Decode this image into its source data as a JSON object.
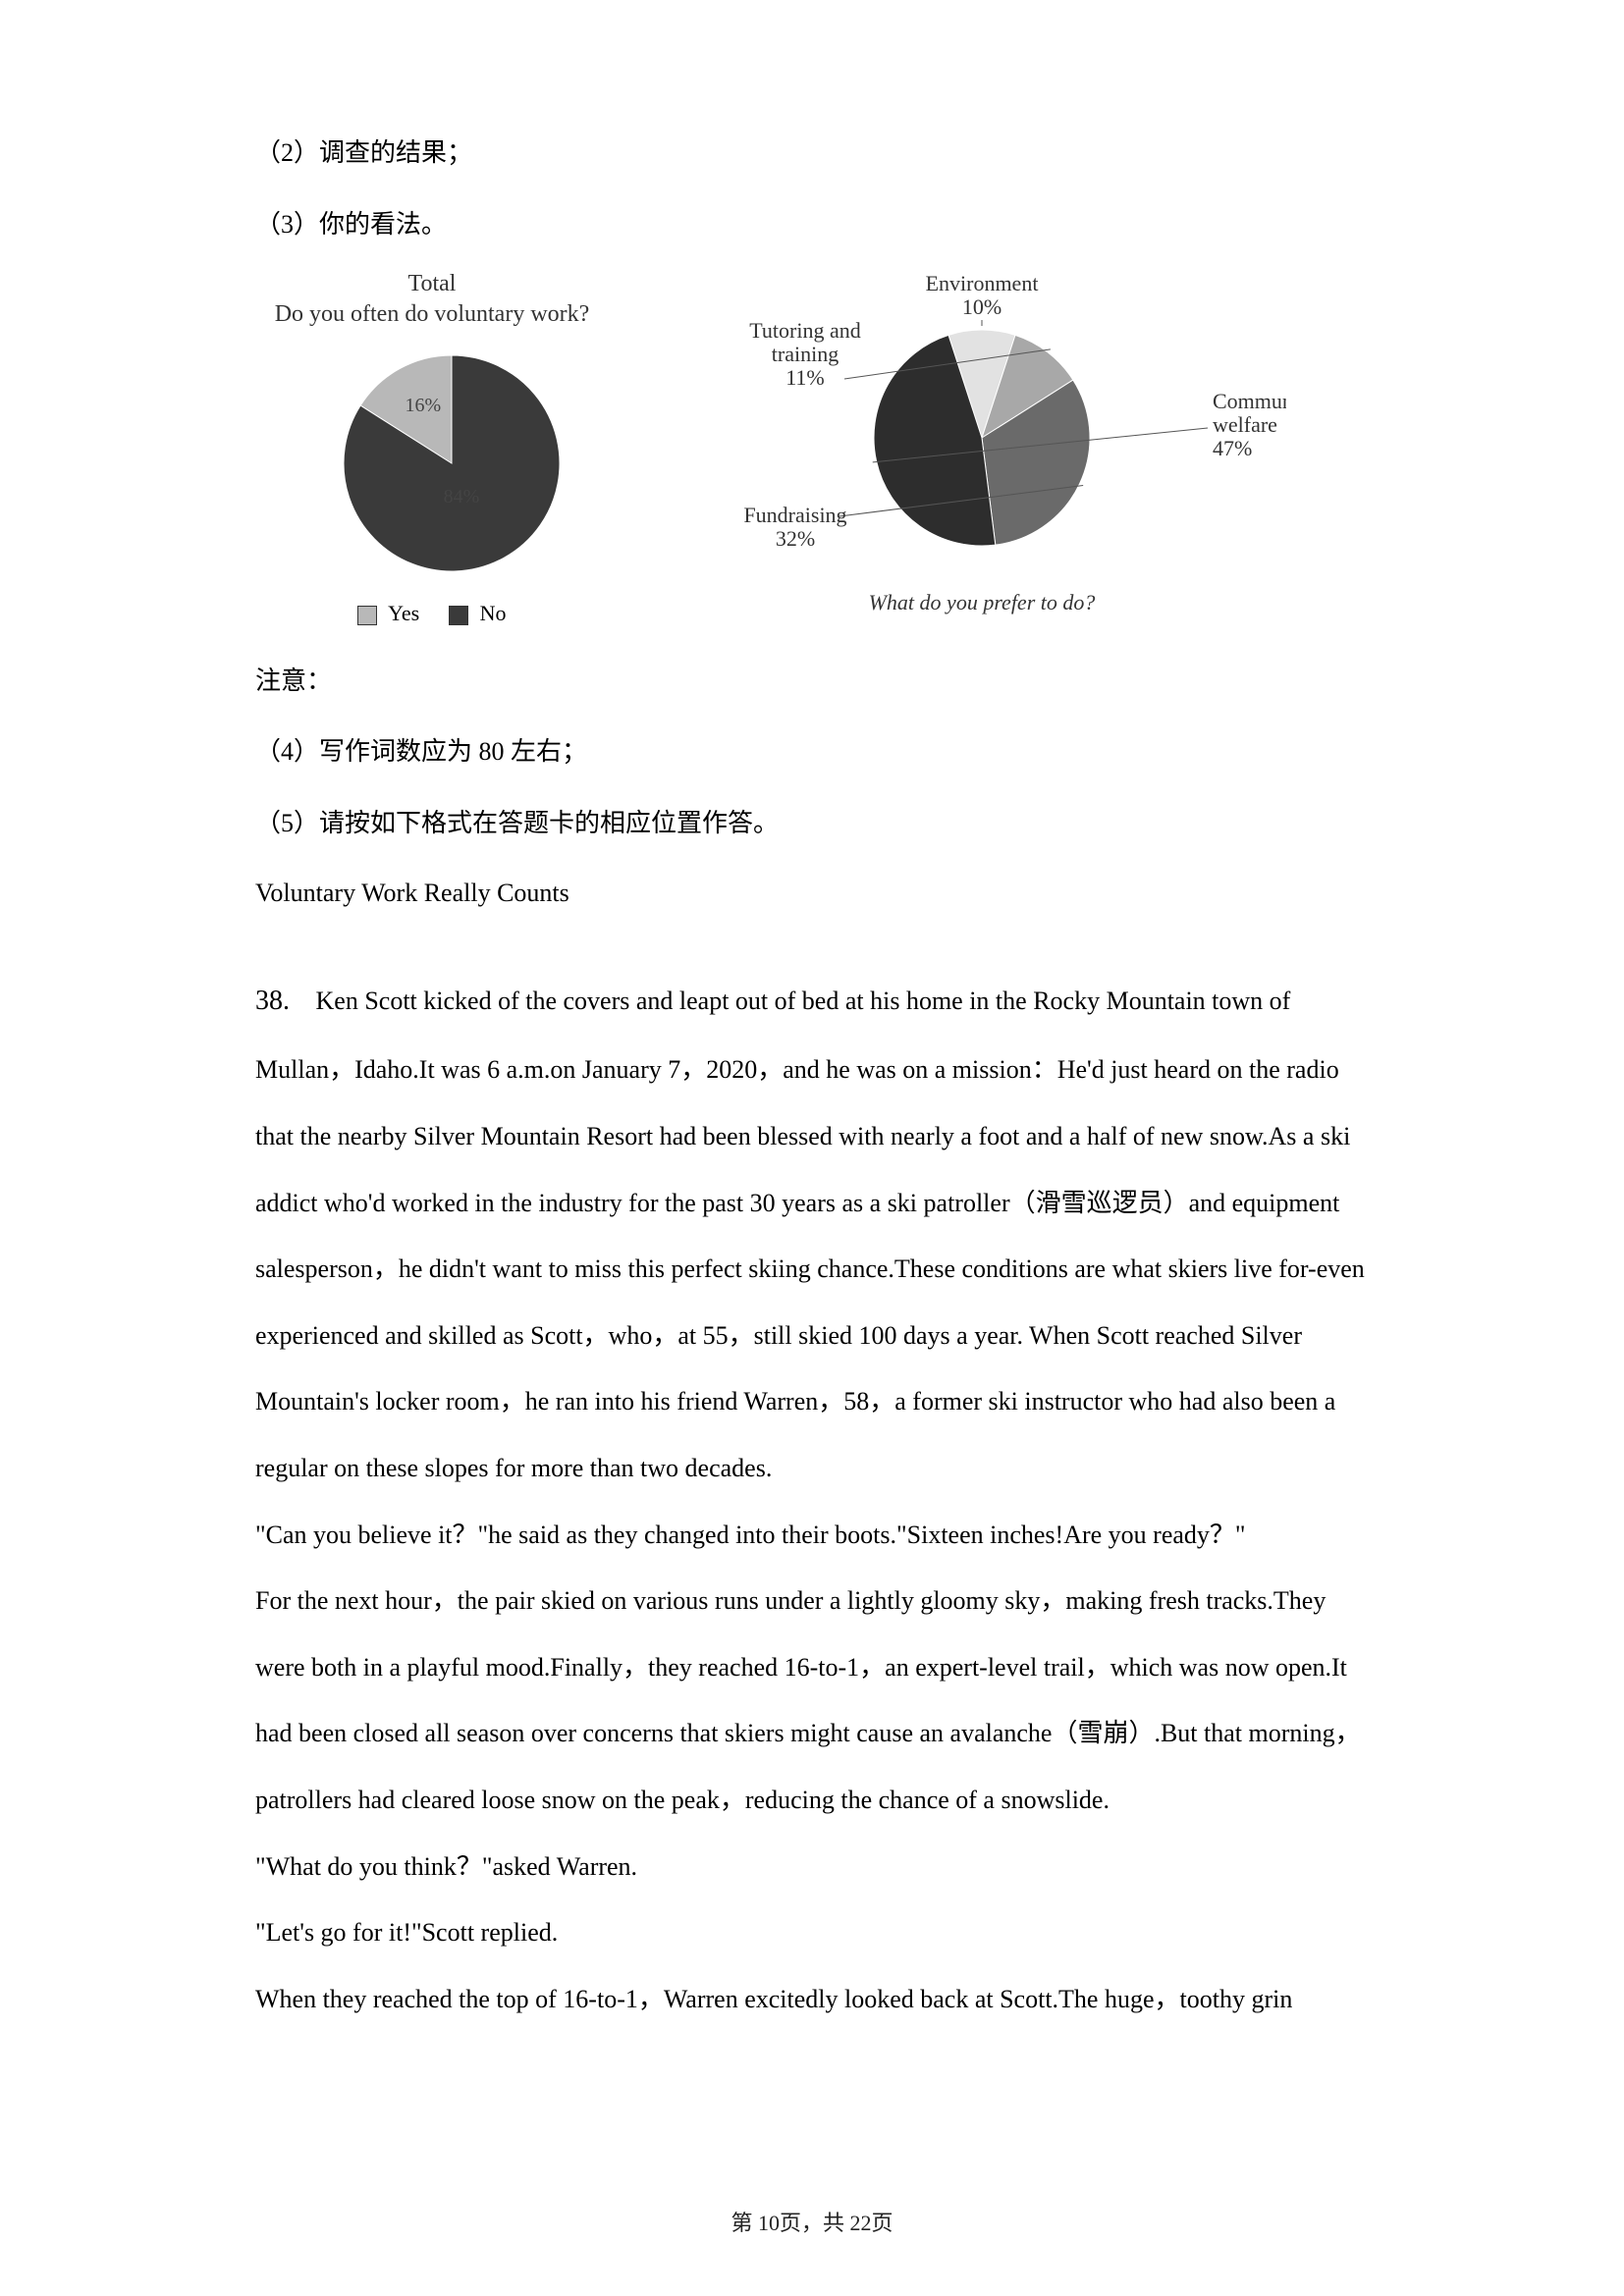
{
  "intro": {
    "item2": "（2）调查的结果；",
    "item3": "（3）你的看法。"
  },
  "chart1": {
    "type": "pie",
    "title": "Total",
    "subtitle": "Do you often do voluntary work?",
    "slices": [
      {
        "label": "Yes",
        "value_label": "16%",
        "value": 16,
        "color": "#b8b8b8"
      },
      {
        "label": "No",
        "value_label": "84%",
        "value": 84,
        "color": "#3a3a3a",
        "center_text": "84%"
      }
    ],
    "legend": [
      {
        "swatch": "#b8b8b8",
        "label": "Yes"
      },
      {
        "swatch": "#3a3a3a",
        "label": "No"
      }
    ],
    "radius": 110,
    "background": "#ffffff"
  },
  "chart2": {
    "type": "pie",
    "title": "Environment",
    "title_value": "10%",
    "labels": {
      "tutoring": {
        "text": "Tutoring and",
        "text2": "training",
        "value": "11%"
      },
      "fundraising": {
        "text": "Fundraising",
        "value": "32%"
      },
      "community": {
        "text": "Community",
        "text2": "welfare",
        "value": "47%"
      }
    },
    "slices": [
      {
        "id": "environment",
        "value": 10,
        "color": "#e2e2e2"
      },
      {
        "id": "tutoring",
        "value": 11,
        "color": "#a8a8a8"
      },
      {
        "id": "fundraising",
        "value": 32,
        "color": "#6a6a6a"
      },
      {
        "id": "community",
        "value": 47,
        "color": "#2d2d2d"
      }
    ],
    "caption": "What do you prefer to do?",
    "radius": 110,
    "background": "#ffffff"
  },
  "notes": {
    "heading": "注意：",
    "item4": "（4）写作词数应为 80 左右；",
    "item5": "（5）请按如下格式在答题卡的相应位置作答。",
    "subtitle": "Voluntary Work Really Counts"
  },
  "passage": {
    "qnum": "38.",
    "p1": "Ken Scott kicked of the covers and leapt out of bed at his home in the Rocky Mountain town of Mullan，Idaho.It was 6 a.m.on January 7，2020，and he was on a mission：He'd just heard on the radio that the nearby Silver Mountain Resort had been blessed with nearly a foot and a half of new snow.As a ski addict who'd worked in the industry for the past 30 years as a ski patroller（滑雪巡逻员）and equipment salesperson，he didn't want to miss this perfect skiing chance.These conditions are what skiers live for-even experienced and skilled as Scott，who，at 55，still skied 100 days a year. When Scott reached Silver Mountain's locker room，he ran into his friend Warren，58，a former ski instructor who had also been a regular on these slopes for more than two decades.",
    "p2": "\"Can you believe it？\"he said as they changed into their boots.\"Sixteen inches!Are you ready？\"",
    "p3": "For the next hour，the pair skied on various runs under a lightly gloomy sky，making fresh tracks.They were both in a playful mood.Finally，they reached 16-to-1，an expert-level trail，which was now open.It had been closed all season over concerns that skiers might cause an avalanche（雪崩）.But that morning，patrollers had cleared loose snow on the peak，reducing the chance of a snowslide.",
    "p4": "\"What do you think？\"asked Warren.",
    "p5": "\"Let's go for it!\"Scott replied.",
    "p6": "When they reached the top of 16-to-1，Warren excitedly looked back at Scott.The huge，toothy grin"
  },
  "footer": {
    "text": "第 10页，共 22页"
  }
}
